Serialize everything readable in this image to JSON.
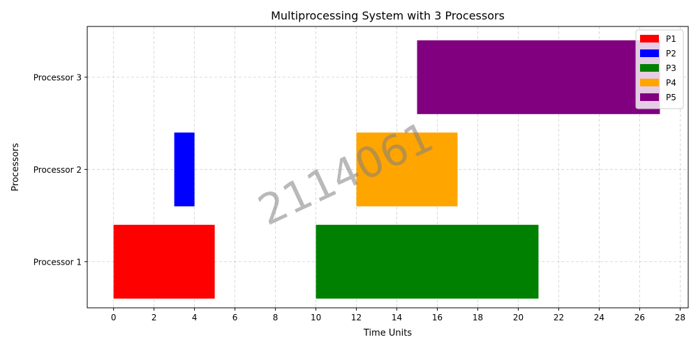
{
  "chart_data": {
    "type": "gantt",
    "title": "Multiprocessing System with 3 Processors",
    "xlabel": "Time Units",
    "ylabel": "Processors",
    "xlim": [
      -1.3,
      28.4
    ],
    "xticks": [
      0,
      2,
      4,
      6,
      8,
      10,
      12,
      14,
      16,
      18,
      20,
      22,
      24,
      26,
      28
    ],
    "categories": [
      "Processor 1",
      "Processor 2",
      "Processor 3"
    ],
    "grid": true,
    "legend_position": "top-right",
    "series": [
      {
        "name": "P1",
        "processor": "Processor 1",
        "start": 0,
        "end": 5,
        "color": "#ff0000"
      },
      {
        "name": "P2",
        "processor": "Processor 2",
        "start": 3,
        "end": 4,
        "color": "#0000ff"
      },
      {
        "name": "P3",
        "processor": "Processor 1",
        "start": 10,
        "end": 21,
        "color": "#008000"
      },
      {
        "name": "P4",
        "processor": "Processor 2",
        "start": 12,
        "end": 17,
        "color": "#ffa500"
      },
      {
        "name": "P5",
        "processor": "Processor 3",
        "start": 15,
        "end": 27,
        "color": "#800080"
      }
    ],
    "watermark": "2114061"
  }
}
